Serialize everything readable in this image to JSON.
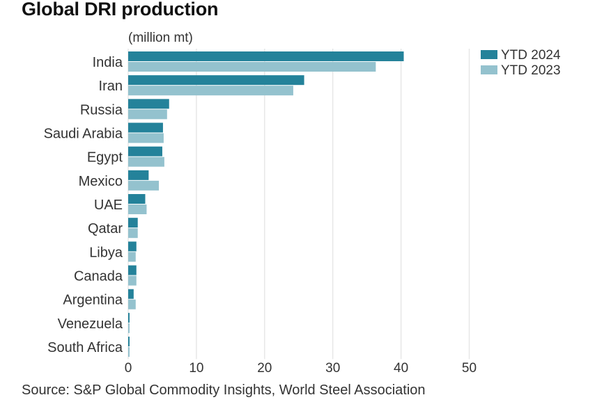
{
  "title": "Global DRI production",
  "unit_label": "(million mt)",
  "source": "Source: S&P Global Commodity Insights, World Steel Association",
  "chart_data": {
    "type": "bar",
    "orientation": "horizontal",
    "title": "Global DRI production",
    "ylabel": "",
    "xlabel": "(million mt)",
    "categories": [
      "India",
      "Iran",
      "Russia",
      "Saudi Arabia",
      "Egypt",
      "Mexico",
      "UAE",
      "Qatar",
      "Libya",
      "Canada",
      "Argentina",
      "Venezuela",
      "South Africa"
    ],
    "series": [
      {
        "name": "YTD 2024",
        "color": "#24829a",
        "values": [
          40.4,
          25.8,
          6.0,
          5.1,
          5.0,
          3.0,
          2.5,
          1.4,
          1.2,
          1.2,
          0.8,
          0.2,
          0.2
        ]
      },
      {
        "name": "YTD 2023",
        "color": "#94c2ce",
        "values": [
          36.3,
          24.2,
          5.7,
          5.2,
          5.3,
          4.5,
          2.7,
          1.4,
          1.1,
          1.2,
          1.1,
          0.2,
          0.2
        ]
      }
    ],
    "xlim": [
      0,
      50
    ],
    "xticks": [
      0,
      10,
      20,
      30,
      40,
      50
    ],
    "grid": true,
    "legend_position": "top-right"
  }
}
